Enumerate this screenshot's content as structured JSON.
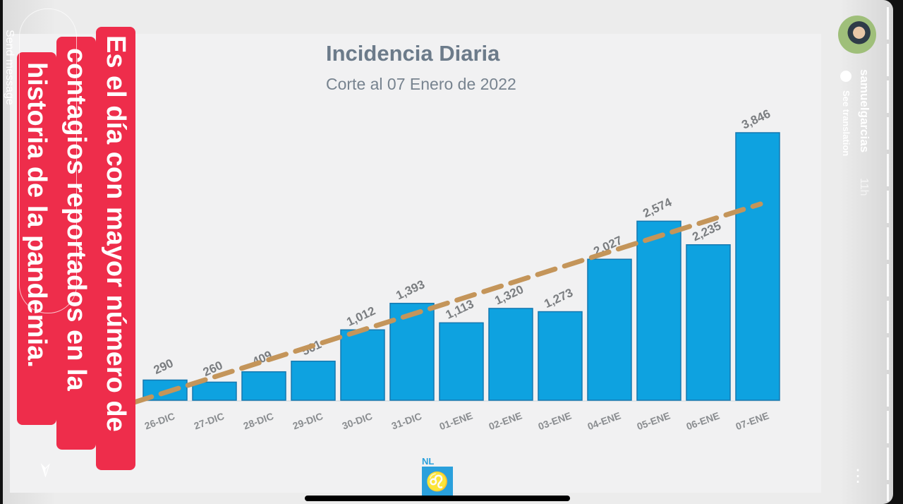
{
  "story": {
    "username": "samuelgarcias",
    "time_ago": "11h",
    "see_translation": "See translation",
    "send_message_placeholder": "Send message",
    "overlay_lines": [
      "Es el día con mayor número de",
      "contagios reportados en la",
      "historia de la pandemia."
    ]
  },
  "logo": {
    "text": "NL"
  },
  "colors": {
    "bar": "#0ea2e0",
    "trend": "#c4955a",
    "overlay": "#ee2d4b"
  },
  "chart_data": {
    "type": "bar",
    "title": "Incidencia Diaria",
    "subtitle": "Corte al 07 Enero de 2022",
    "categories": [
      "26-DIC",
      "27-DIC",
      "28-DIC",
      "29-DIC",
      "30-DIC",
      "31-DIC",
      "01-ENE",
      "02-ENE",
      "03-ENE",
      "04-ENE",
      "05-ENE",
      "06-ENE",
      "07-ENE"
    ],
    "values": [
      290,
      260,
      409,
      561,
      1012,
      1393,
      1113,
      1320,
      1273,
      2027,
      2574,
      2235,
      3846
    ],
    "labels": [
      "290",
      "260",
      "409",
      "561",
      "1,012",
      "1,393",
      "1,113",
      "1,320",
      "1,273",
      "2,027",
      "2,574",
      "2,235",
      "3,846"
    ],
    "trendline": "linear, dashed",
    "ylim": [
      0,
      3846
    ],
    "xlabel": "",
    "ylabel": ""
  }
}
